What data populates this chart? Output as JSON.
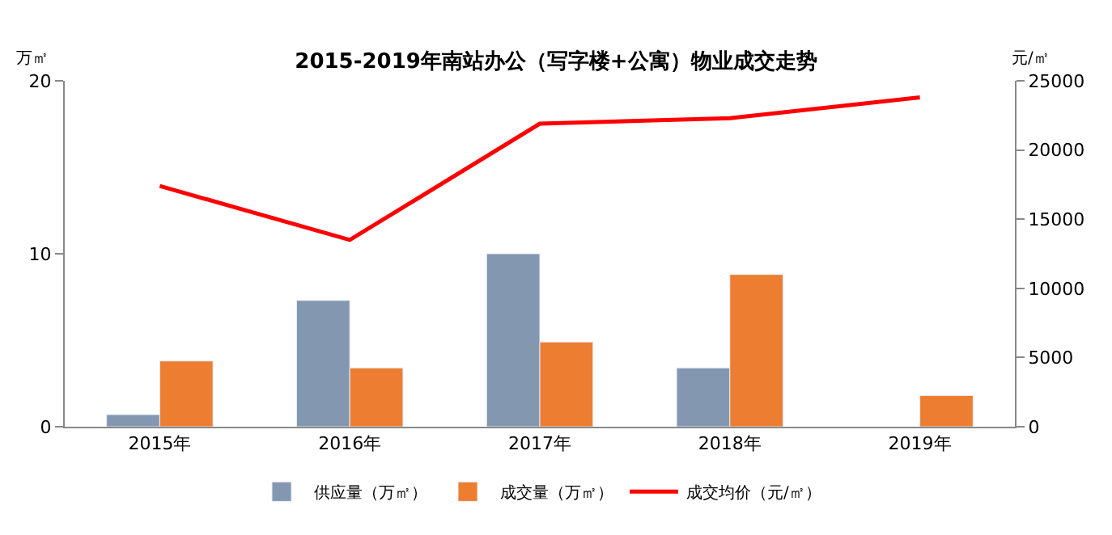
{
  "chart_data": {
    "type": "bar",
    "title": "2015-2019年南站办公（写字楼+公寓）物业成交走势",
    "categories": [
      "2015年",
      "2016年",
      "2017年",
      "2018年",
      "2019年"
    ],
    "series": [
      {
        "name": "供应量（万㎡）",
        "color": "#8497b0",
        "values": [
          0.7,
          7.3,
          10.0,
          3.4,
          null
        ]
      },
      {
        "name": "成交量（万㎡）",
        "color": "#ed7d31",
        "values": [
          3.8,
          3.4,
          4.9,
          8.8,
          1.8
        ]
      },
      {
        "name": "成交均价（元/㎡）",
        "color": "#ff0000",
        "type": "line",
        "axis": "y2",
        "values": [
          17400,
          13500,
          21900,
          22300,
          23800
        ]
      }
    ],
    "ylabel": "万㎡",
    "y2label": "元/㎡",
    "ylim": [
      0,
      20
    ],
    "yticks": [
      0,
      10,
      20
    ],
    "y2lim": [
      0,
      25000
    ],
    "y2ticks": [
      0,
      5000,
      10000,
      15000,
      20000,
      25000
    ],
    "legend": "bottom",
    "marker": "none"
  }
}
